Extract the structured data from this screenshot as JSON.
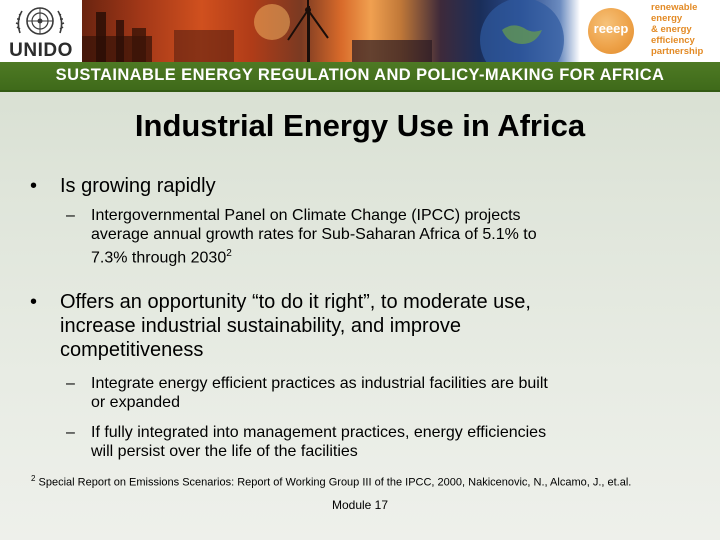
{
  "header": {
    "unido_text": "UNIDO",
    "reeep_word": "reeep",
    "reeep_lines": [
      "renewable",
      "energy",
      "& energy",
      "efficiency",
      "partnership"
    ]
  },
  "subtitle": "SUSTAINABLE ENERGY REGULATION AND POLICY-MAKING FOR AFRICA",
  "title": "Industrial Energy Use in Africa",
  "bullets": [
    {
      "text": "Is growing rapidly",
      "subs": [
        {
          "lines": [
            "Intergovernmental Panel on Climate Change (IPCC) projects",
            "average annual growth rates for Sub-Saharan Africa of 5.1% to",
            "7.3% through 2030"
          ],
          "superscript": "2"
        }
      ]
    },
    {
      "lines": [
        "Offers an opportunity “to do it right”, to moderate use,",
        "increase industrial sustainability, and improve",
        "competitiveness"
      ],
      "subs": [
        {
          "lines": [
            "Integrate energy efficient practices as industrial facilities are built",
            "or expanded"
          ]
        },
        {
          "lines": [
            "If fully integrated into management practices, energy efficiencies",
            "will persist over the life of the facilities"
          ]
        }
      ]
    }
  ],
  "footnote": {
    "marker": "2",
    "text": "Special Report on Emissions Scenarios: Report of Working Group III of the IPCC, 2000, Nakicenovic, N., Alcamo, J., et.al."
  },
  "module": "Module 17"
}
